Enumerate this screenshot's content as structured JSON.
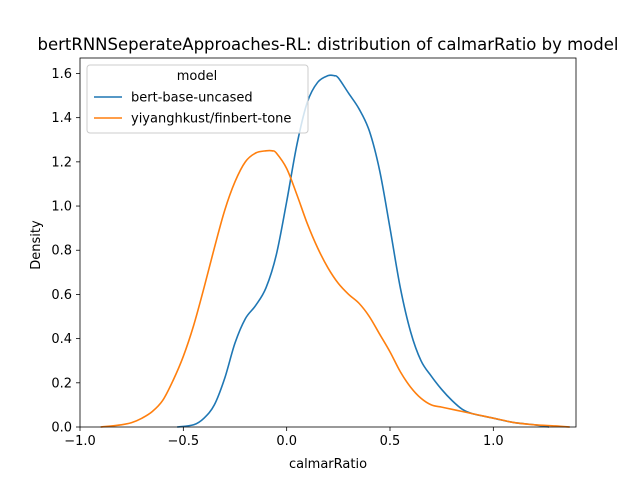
{
  "chart_data": {
    "type": "line",
    "title": "bertRNNSeperateApproaches-RL: distribution of calmarRatio by model",
    "xlabel": "calmarRatio",
    "ylabel": "Density",
    "xlim": [
      -1.0,
      1.4
    ],
    "ylim": [
      0.0,
      1.67
    ],
    "x_ticks": [
      -1.0,
      -0.5,
      0.0,
      0.5,
      1.0
    ],
    "x_tick_labels": [
      "−1.0",
      "−0.5",
      "0.0",
      "0.5",
      "1.0"
    ],
    "y_ticks": [
      0.0,
      0.2,
      0.4,
      0.6,
      0.8,
      1.0,
      1.2,
      1.4,
      1.6
    ],
    "y_tick_labels": [
      "0.0",
      "0.2",
      "0.4",
      "0.6",
      "0.8",
      "1.0",
      "1.2",
      "1.4",
      "1.6"
    ],
    "grid": false,
    "legend": {
      "title": "model",
      "placement": "top-left"
    },
    "series": [
      {
        "name": "bert-base-uncased",
        "color": "#1f77b4",
        "x": [
          -0.53,
          -0.45,
          -0.4,
          -0.35,
          -0.3,
          -0.25,
          -0.2,
          -0.15,
          -0.1,
          -0.05,
          0.0,
          0.05,
          0.1,
          0.15,
          0.2,
          0.23,
          0.25,
          0.3,
          0.35,
          0.4,
          0.45,
          0.5,
          0.55,
          0.6,
          0.65,
          0.7,
          0.75,
          0.8,
          0.85,
          0.9,
          1.0,
          1.1,
          1.2,
          1.27
        ],
        "y": [
          0.0,
          0.01,
          0.04,
          0.1,
          0.22,
          0.38,
          0.49,
          0.55,
          0.63,
          0.78,
          1.02,
          1.28,
          1.47,
          1.56,
          1.59,
          1.59,
          1.58,
          1.51,
          1.44,
          1.34,
          1.16,
          0.9,
          0.63,
          0.43,
          0.3,
          0.23,
          0.17,
          0.12,
          0.08,
          0.06,
          0.04,
          0.02,
          0.01,
          0.0
        ]
      },
      {
        "name": "yiyanghkust/finbert-tone",
        "color": "#ff7f0e",
        "x": [
          -0.9,
          -0.8,
          -0.75,
          -0.7,
          -0.65,
          -0.6,
          -0.55,
          -0.5,
          -0.45,
          -0.4,
          -0.35,
          -0.3,
          -0.25,
          -0.2,
          -0.15,
          -0.1,
          -0.07,
          -0.05,
          0.0,
          0.05,
          0.1,
          0.15,
          0.2,
          0.25,
          0.3,
          0.35,
          0.4,
          0.45,
          0.5,
          0.55,
          0.6,
          0.65,
          0.7,
          0.75,
          0.8,
          0.85,
          0.9,
          0.95,
          1.0,
          1.05,
          1.1,
          1.2,
          1.3,
          1.37
        ],
        "y": [
          0.0,
          0.01,
          0.02,
          0.04,
          0.07,
          0.12,
          0.21,
          0.32,
          0.46,
          0.63,
          0.81,
          0.98,
          1.11,
          1.2,
          1.24,
          1.25,
          1.25,
          1.24,
          1.17,
          1.05,
          0.92,
          0.81,
          0.72,
          0.65,
          0.6,
          0.56,
          0.5,
          0.42,
          0.34,
          0.25,
          0.18,
          0.13,
          0.1,
          0.09,
          0.08,
          0.07,
          0.06,
          0.05,
          0.04,
          0.03,
          0.02,
          0.01,
          0.005,
          0.0
        ]
      }
    ]
  }
}
